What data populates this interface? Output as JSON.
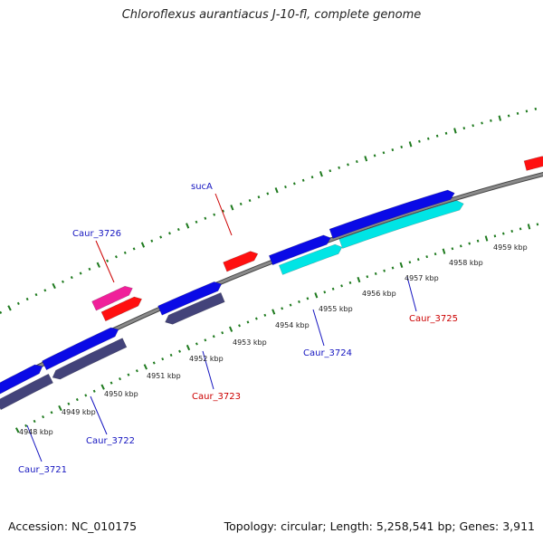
{
  "title": "Chloroflexus aurantiacus J-10-fl, complete genome",
  "footer": {
    "accession": "Accession: NC_010175",
    "summary": "Topology: circular; Length: 5,258,541 bp; Genes: 3,911"
  },
  "colors": {
    "backbone": "#8a8a8a",
    "backbone_dark": "#444444",
    "tick": "#1e7a1e",
    "forward_cds": "#0a0ae6",
    "reverse_cds": "#43437a",
    "forward_highlight": "#00e5e5",
    "rna": "#ff1010",
    "rna_alt": "#f0209a",
    "label_blue": "#1515c0",
    "label_red": "#cc0000"
  },
  "scale_labels": [
    "4948 kbp",
    "4949 kbp",
    "4950 kbp",
    "4951 kbp",
    "4952 kbp",
    "4953 kbp",
    "4954 kbp",
    "4955 kbp",
    "4956 kbp",
    "4957 kbp",
    "4958 kbp",
    "4959 kbp"
  ],
  "gene_labels": [
    {
      "text": "Caur_3721",
      "color": "label_blue"
    },
    {
      "text": "Caur_3722",
      "color": "label_blue"
    },
    {
      "text": "Caur_3723",
      "color": "label_red"
    },
    {
      "text": "Caur_3724",
      "color": "label_blue"
    },
    {
      "text": "Caur_3725",
      "color": "label_red"
    },
    {
      "text": "Caur_3726",
      "color": "label_blue"
    },
    {
      "text": "sucA",
      "color": "label_blue"
    }
  ]
}
